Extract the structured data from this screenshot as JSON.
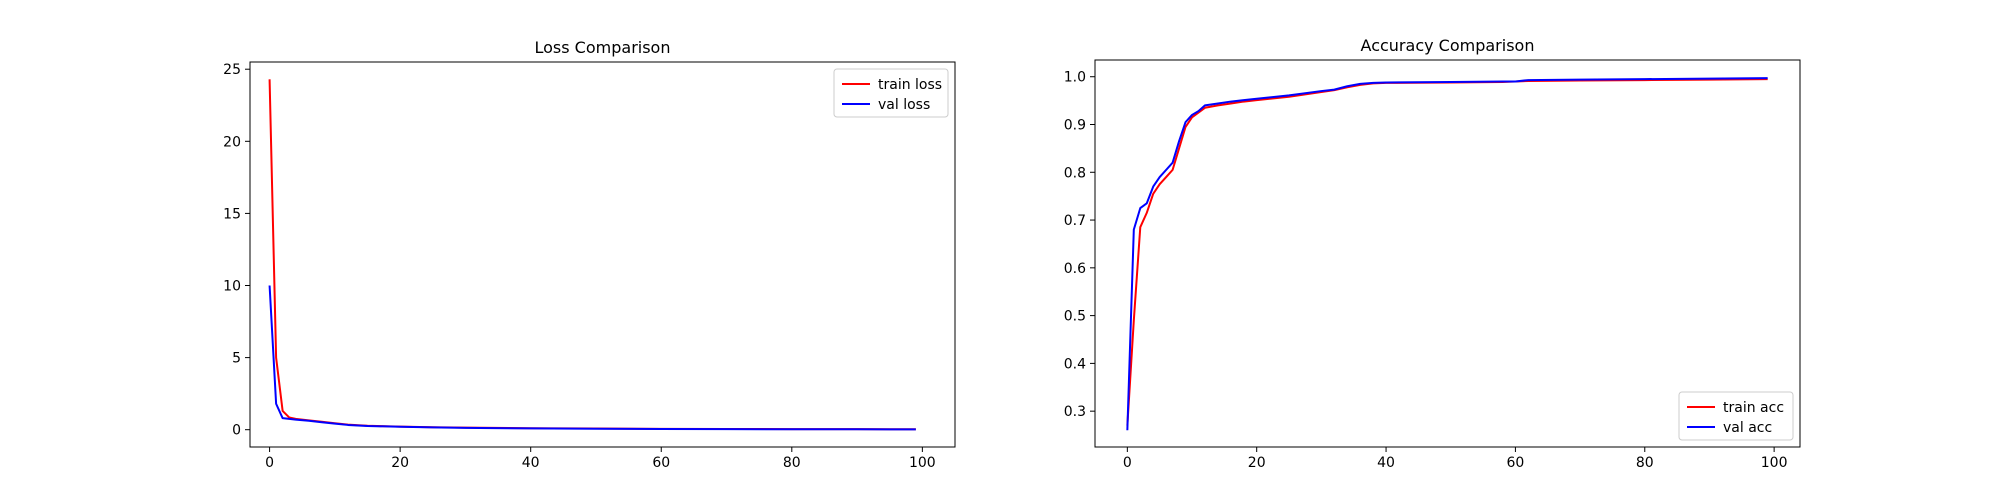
{
  "colors": {
    "train": "#ff0000",
    "val": "#0000ff",
    "axes": "#000000",
    "background": "#ffffff"
  },
  "chart_data": [
    {
      "type": "line",
      "title": "Loss Comparison",
      "xlabel": "",
      "ylabel": "",
      "xlim": [
        -3,
        105
      ],
      "ylim": [
        -1.2,
        25.5
      ],
      "xticks": [
        0,
        20,
        40,
        60,
        80,
        100
      ],
      "yticks": [
        0,
        5,
        10,
        15,
        20,
        25
      ],
      "grid": false,
      "legend_position": "upper right",
      "series": [
        {
          "name": "train loss",
          "color": "#ff0000",
          "x": [
            0,
            1,
            2,
            3,
            4,
            6,
            8,
            10,
            12,
            15,
            20,
            25,
            30,
            40,
            50,
            60,
            70,
            80,
            90,
            99
          ],
          "y": [
            24.3,
            5.0,
            1.3,
            0.85,
            0.75,
            0.65,
            0.55,
            0.45,
            0.35,
            0.27,
            0.21,
            0.17,
            0.14,
            0.1,
            0.08,
            0.06,
            0.05,
            0.04,
            0.04,
            0.03
          ]
        },
        {
          "name": "val loss",
          "color": "#0000ff",
          "x": [
            0,
            1,
            2,
            3,
            4,
            6,
            8,
            10,
            12,
            15,
            20,
            25,
            30,
            40,
            50,
            60,
            70,
            80,
            90,
            99
          ],
          "y": [
            10.0,
            1.8,
            0.8,
            0.75,
            0.7,
            0.62,
            0.52,
            0.42,
            0.33,
            0.26,
            0.2,
            0.16,
            0.13,
            0.09,
            0.07,
            0.05,
            0.04,
            0.03,
            0.03,
            0.02
          ]
        }
      ]
    },
    {
      "type": "line",
      "title": "Accuracy Comparison",
      "xlabel": "",
      "ylabel": "",
      "xlim": [
        -5,
        104
      ],
      "ylim": [
        0.225,
        1.035
      ],
      "xticks": [
        0,
        20,
        40,
        60,
        80,
        100
      ],
      "yticks": [
        0.3,
        0.4,
        0.5,
        0.6,
        0.7,
        0.8,
        0.9,
        1.0
      ],
      "ytick_labels": [
        "0.3",
        "0.4",
        "0.5",
        "0.6",
        "0.7",
        "0.8",
        "0.9",
        "1.0"
      ],
      "grid": false,
      "legend_position": "lower right",
      "series": [
        {
          "name": "train acc",
          "color": "#ff0000",
          "x": [
            0,
            1,
            2,
            3,
            4,
            5,
            6,
            7,
            8,
            9,
            10,
            11,
            12,
            14,
            16,
            18,
            20,
            25,
            30,
            32,
            34,
            36,
            38,
            40,
            50,
            58,
            60,
            62,
            70,
            80,
            90,
            99
          ],
          "y": [
            0.27,
            0.49,
            0.685,
            0.715,
            0.755,
            0.775,
            0.79,
            0.805,
            0.85,
            0.895,
            0.915,
            0.925,
            0.935,
            0.94,
            0.944,
            0.948,
            0.951,
            0.958,
            0.968,
            0.972,
            0.978,
            0.983,
            0.986,
            0.987,
            0.988,
            0.989,
            0.99,
            0.991,
            0.992,
            0.993,
            0.994,
            0.995
          ]
        },
        {
          "name": "val acc",
          "color": "#0000ff",
          "x": [
            0,
            1,
            2,
            3,
            4,
            5,
            6,
            7,
            8,
            9,
            10,
            11,
            12,
            14,
            16,
            18,
            20,
            25,
            30,
            32,
            34,
            36,
            38,
            40,
            50,
            58,
            60,
            62,
            70,
            80,
            90,
            99
          ],
          "y": [
            0.26,
            0.68,
            0.725,
            0.735,
            0.77,
            0.79,
            0.805,
            0.82,
            0.865,
            0.905,
            0.92,
            0.928,
            0.94,
            0.944,
            0.948,
            0.951,
            0.954,
            0.961,
            0.97,
            0.973,
            0.98,
            0.985,
            0.987,
            0.988,
            0.989,
            0.99,
            0.99,
            0.993,
            0.994,
            0.995,
            0.996,
            0.997
          ]
        }
      ]
    }
  ]
}
